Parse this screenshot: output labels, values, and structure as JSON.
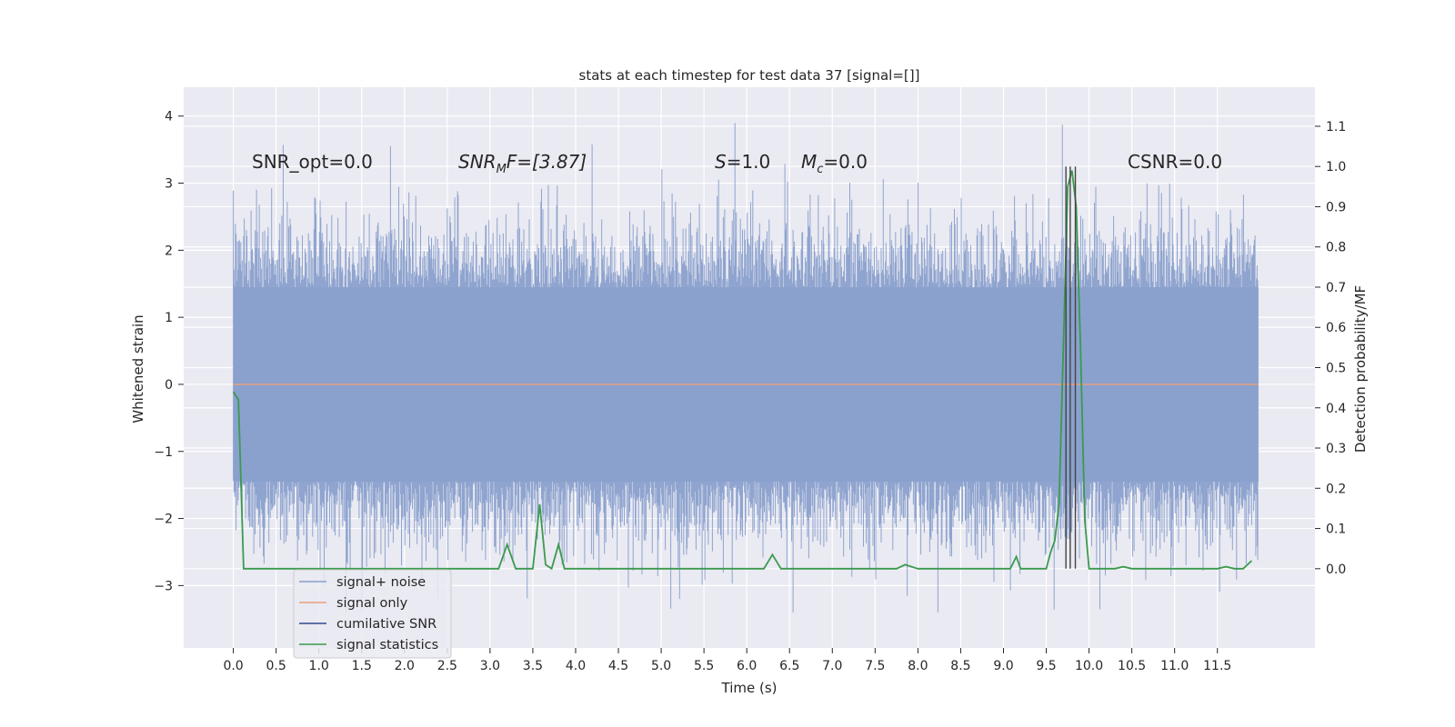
{
  "chart_data": {
    "type": "line",
    "title": "stats at each timestep for test data 37 [signal=[]]",
    "xlabel": "Time (s)",
    "ylabel": "Whitened strain",
    "ylabel_right": "Detection probability/MF",
    "xlim": [
      -0.58,
      12.64
    ],
    "ylim": [
      -3.93,
      4.43
    ],
    "ylim_right": [
      -0.197,
      1.197
    ],
    "xticks": [
      "0.0",
      "0.5",
      "1.0",
      "1.5",
      "2.0",
      "2.5",
      "3.0",
      "3.5",
      "4.0",
      "4.5",
      "5.0",
      "5.5",
      "6.0",
      "6.5",
      "7.0",
      "7.5",
      "8.0",
      "8.5",
      "9.0",
      "9.5",
      "10.0",
      "10.5",
      "11.0",
      "11.5"
    ],
    "yticks": [
      "4",
      "3",
      "2",
      "1",
      "0",
      "−1",
      "−2",
      "−3"
    ],
    "yticks_right": [
      "1.1",
      "1.0",
      "0.9",
      "0.8",
      "0.7",
      "0.6",
      "0.5",
      "0.4",
      "0.3",
      "0.2",
      "0.1",
      "0.0"
    ],
    "grid": true,
    "legend_position": "lower-left",
    "annotations": {
      "snr_opt": "SNR_opt=0.0",
      "snr_mf_main": "SNR",
      "snr_mf_sub": "M",
      "snr_mf_rest": "F=[3.87]",
      "s_main": "S",
      "s_rest": "=1.0",
      "mc_main": "M",
      "mc_sub": "c",
      "mc_rest": "=0.0",
      "csnr": "CSNR=0.0"
    },
    "series": [
      {
        "name": "signal+ noise",
        "color": "#8aa0cc",
        "description": "whitened strain noise, roughly within ±1.5 with peaks to 4.1"
      },
      {
        "name": "signal only",
        "color": "#e8a07f",
        "values_constant": 0.0
      },
      {
        "name": "cumilative SNR",
        "color": "#2f4b8f"
      },
      {
        "name": "signal statistics",
        "color": "#3b9a4e",
        "axis": "right",
        "x": [
          0.0,
          0.06,
          0.12,
          0.5,
          1.0,
          2.0,
          3.0,
          3.1,
          3.2,
          3.3,
          3.4,
          3.5,
          3.58,
          3.65,
          3.72,
          3.8,
          3.87,
          3.93,
          4.0,
          5.0,
          6.0,
          6.2,
          6.3,
          6.4,
          7.0,
          7.5,
          7.75,
          7.85,
          8.0,
          8.5,
          9.0,
          9.08,
          9.15,
          9.2,
          9.3,
          9.4,
          9.5,
          9.55,
          9.6,
          9.65,
          9.7,
          9.75,
          9.8,
          9.85,
          9.9,
          9.95,
          10.0,
          10.1,
          10.3,
          10.4,
          10.5,
          11.0,
          11.5,
          11.6,
          11.7,
          11.8,
          11.9
        ],
        "values": [
          0.44,
          0.42,
          0.0,
          0.0,
          0.0,
          0.0,
          0.0,
          0.0,
          0.06,
          0.0,
          0.0,
          0.0,
          0.16,
          0.01,
          0.0,
          0.06,
          0.0,
          0.0,
          0.0,
          0.0,
          0.0,
          0.0,
          0.035,
          0.0,
          0.0,
          0.0,
          0.0,
          0.01,
          0.0,
          0.0,
          0.0,
          0.0,
          0.03,
          0.0,
          0.0,
          0.0,
          0.0,
          0.04,
          0.07,
          0.16,
          0.55,
          0.95,
          0.99,
          0.9,
          0.55,
          0.12,
          0.0,
          0.0,
          0.0,
          0.005,
          0.0,
          0.0,
          0.0,
          0.005,
          0.0,
          0.0,
          0.02
        ]
      }
    ],
    "vertical_markers_x": [
      9.73,
      9.78,
      9.84
    ]
  }
}
